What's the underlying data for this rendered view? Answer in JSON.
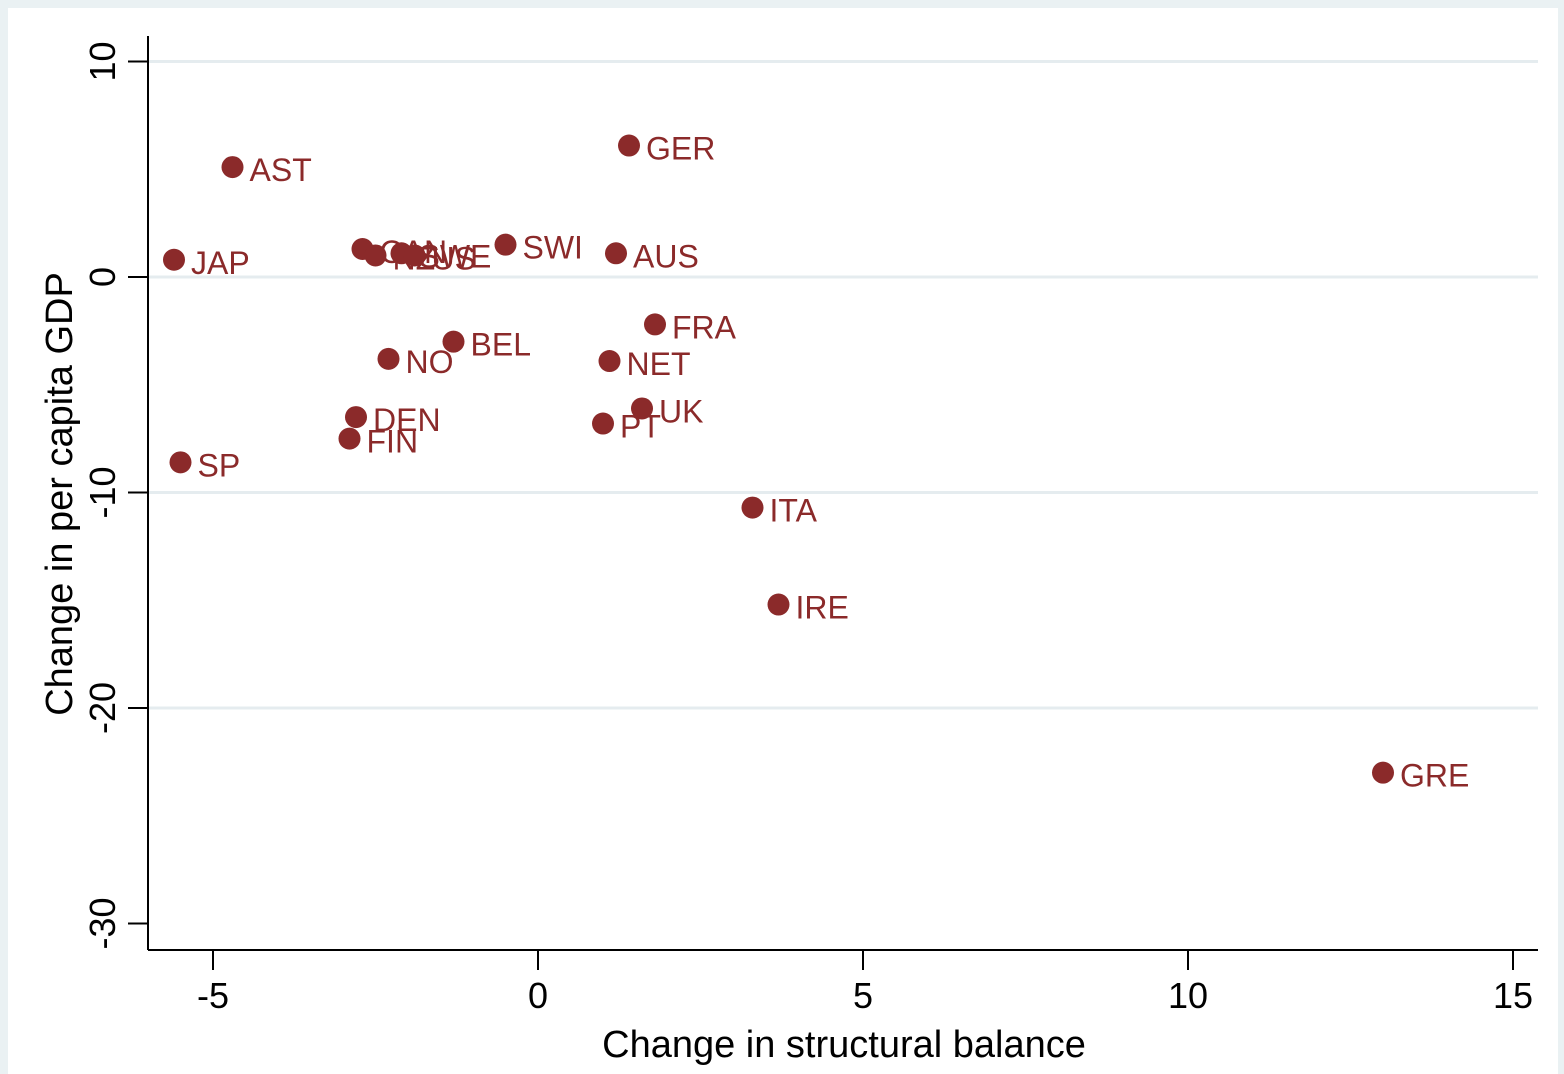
{
  "colors": {
    "outer_background": "#eaf1f3",
    "plot_background": "#ffffff",
    "gridline": "#e5ecef",
    "axis": "#000000",
    "marker": "#8b2a2a",
    "label": "#8b2a2a"
  },
  "chart_data": {
    "type": "scatter",
    "title": "",
    "xlabel": "Change in structural balance",
    "ylabel": "Change in per capita GDP",
    "xlim": [
      -6,
      15
    ],
    "ylim": [
      -31.2,
      11.2
    ],
    "xticks": [
      -5,
      0,
      5,
      10,
      15
    ],
    "yticks": [
      10,
      0,
      -10,
      -20,
      -30
    ],
    "grid": "horizontal",
    "legend": "none",
    "points": [
      {
        "label": "AST",
        "x": -4.7,
        "y": 5.1
      },
      {
        "label": "GER",
        "x": 1.4,
        "y": 6.1
      },
      {
        "label": "JAP",
        "x": -5.6,
        "y": 0.8
      },
      {
        "label": "CAN",
        "x": -2.7,
        "y": 1.3
      },
      {
        "label": "NZ",
        "x": -2.5,
        "y": 1.0
      },
      {
        "label": "SWE",
        "x": -2.1,
        "y": 1.1
      },
      {
        "label": "US",
        "x": -1.9,
        "y": 1.0
      },
      {
        "label": "SWI",
        "x": -0.5,
        "y": 1.5
      },
      {
        "label": "AUS",
        "x": 1.2,
        "y": 1.1
      },
      {
        "label": "FRA",
        "x": 1.8,
        "y": -2.2
      },
      {
        "label": "BEL",
        "x": -1.3,
        "y": -3.0
      },
      {
        "label": "NO",
        "x": -2.3,
        "y": -3.8
      },
      {
        "label": "NET",
        "x": 1.1,
        "y": -3.9
      },
      {
        "label": "UK",
        "x": 1.6,
        "y": -6.1
      },
      {
        "label": "PT",
        "x": 1.0,
        "y": -6.8
      },
      {
        "label": "DEN",
        "x": -2.8,
        "y": -6.5
      },
      {
        "label": "FIN",
        "x": -2.9,
        "y": -7.5
      },
      {
        "label": "SP",
        "x": -5.5,
        "y": -8.6
      },
      {
        "label": "ITA",
        "x": 3.3,
        "y": -10.7
      },
      {
        "label": "IRE",
        "x": 3.7,
        "y": -15.2
      },
      {
        "label": "GRE",
        "x": 13.0,
        "y": -23.0
      }
    ]
  }
}
